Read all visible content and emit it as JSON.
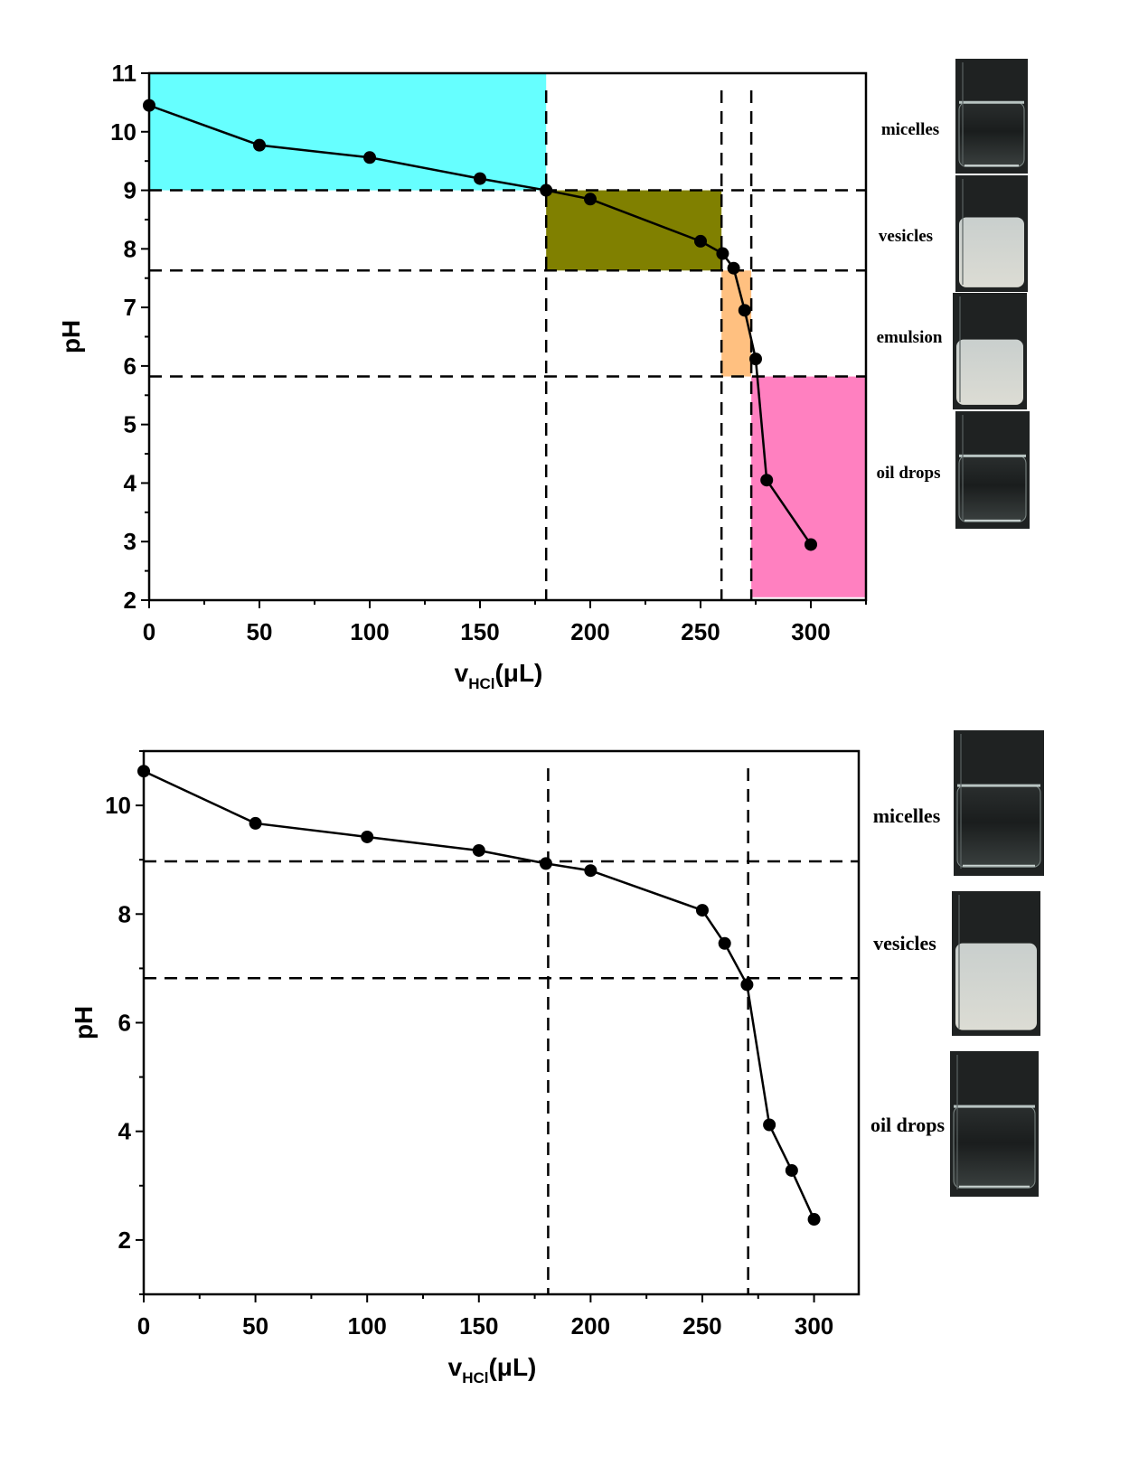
{
  "chart_data": [
    {
      "type": "line",
      "xlabel": "v",
      "xlabel_sub": "HCl",
      "xlabel_unit": "(μL)",
      "ylabel": "pH",
      "xlim": [
        0,
        325
      ],
      "ylim": [
        2,
        11
      ],
      "xticks": [
        0,
        50,
        100,
        150,
        200,
        250,
        300
      ],
      "yticks": [
        2,
        3,
        4,
        5,
        6,
        7,
        8,
        9,
        10,
        11
      ],
      "grid": false,
      "x": [
        0,
        50,
        100,
        150,
        180,
        200,
        250,
        260,
        265,
        270,
        275,
        280,
        300
      ],
      "y": [
        10.45,
        9.77,
        9.56,
        9.2,
        9.0,
        8.85,
        8.13,
        7.92,
        7.67,
        6.95,
        6.12,
        4.05,
        2.95
      ],
      "hlines": [
        9.0,
        7.63,
        5.82
      ],
      "vlines": [
        180,
        259.5,
        273
      ],
      "regions": [
        {
          "x": [
            0,
            180
          ],
          "y": [
            9.0,
            11
          ],
          "color": "#66FFFF"
        },
        {
          "x": [
            180,
            259.5
          ],
          "y": [
            7.63,
            9.0
          ],
          "color": "#808000"
        },
        {
          "x": [
            259.5,
            273
          ],
          "y": [
            5.82,
            7.63
          ],
          "color": "#FFC080"
        },
        {
          "x": [
            273,
            325
          ],
          "y": [
            2.05,
            5.82
          ],
          "color": "#FF80C0"
        }
      ],
      "phases": [
        "micelles",
        "vesicles",
        "emulsion",
        "oil drops"
      ]
    },
    {
      "type": "line",
      "xlabel": "v",
      "xlabel_sub": "HCl",
      "xlabel_unit": "(μL)",
      "ylabel": "pH",
      "xlim": [
        0,
        320
      ],
      "ylim": [
        1,
        11
      ],
      "xticks": [
        0,
        50,
        100,
        150,
        200,
        250,
        300
      ],
      "yticks": [
        2,
        4,
        6,
        8,
        10
      ],
      "grid": false,
      "x": [
        0,
        50,
        100,
        150,
        180,
        200,
        250,
        260,
        270,
        280,
        290,
        300
      ],
      "y": [
        10.63,
        9.67,
        9.42,
        9.17,
        8.93,
        8.8,
        8.07,
        7.46,
        6.7,
        4.12,
        3.28,
        2.38
      ],
      "hlines": [
        8.97,
        6.82
      ],
      "vlines": [
        181,
        270.5
      ],
      "regions": [],
      "phases": [
        "micelles",
        "vesicles",
        "oil drops"
      ]
    }
  ]
}
